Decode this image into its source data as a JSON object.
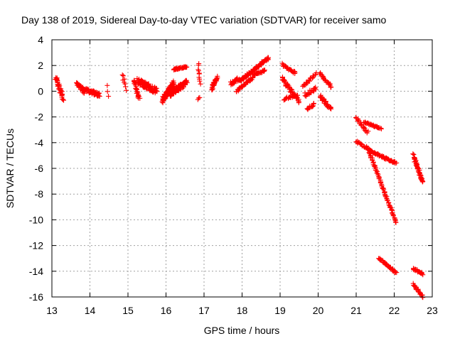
{
  "chart_data": {
    "type": "scatter",
    "title": "Day 138 of 2019, Sidereal Day-to-day VTEC variation (SDTVAR) for receiver samo",
    "xlabel": "GPS time / hours",
    "ylabel": "SDTVAR / TECUs",
    "xlim": [
      13,
      23
    ],
    "ylim": [
      -16,
      4
    ],
    "xticks": [
      13,
      14,
      15,
      16,
      17,
      18,
      19,
      20,
      21,
      22,
      23
    ],
    "yticks": [
      -16,
      -14,
      -12,
      -10,
      -8,
      -6,
      -4,
      -2,
      0,
      2,
      4
    ],
    "grid": true,
    "marker": "plus",
    "color": "#ff0000",
    "segments": [
      {
        "x0": 13.1,
        "y0": 1.0,
        "x1": 13.3,
        "y1": -0.5,
        "n": 40,
        "jitter": 0.5
      },
      {
        "x0": 13.65,
        "y0": 0.6,
        "x1": 13.85,
        "y1": 0.0,
        "n": 30,
        "jitter": 0.35
      },
      {
        "x0": 13.8,
        "y0": 0.2,
        "x1": 14.25,
        "y1": -0.3,
        "n": 60,
        "jitter": 0.3
      },
      {
        "x0": 14.45,
        "y0": 0.4,
        "x1": 14.5,
        "y1": -0.4,
        "n": 3,
        "jitter": 0.1
      },
      {
        "x0": 14.85,
        "y0": 1.3,
        "x1": 14.95,
        "y1": 0.2,
        "n": 8,
        "jitter": 0.3
      },
      {
        "x0": 15.15,
        "y0": 0.9,
        "x1": 15.3,
        "y1": -0.6,
        "n": 25,
        "jitter": 0.4
      },
      {
        "x0": 15.25,
        "y0": 0.8,
        "x1": 15.75,
        "y1": 0.0,
        "n": 90,
        "jitter": 0.45
      },
      {
        "x0": 15.9,
        "y0": -0.7,
        "x1": 16.2,
        "y1": 0.6,
        "n": 80,
        "jitter": 0.45
      },
      {
        "x0": 16.1,
        "y0": -0.2,
        "x1": 16.55,
        "y1": 0.7,
        "n": 80,
        "jitter": 0.45
      },
      {
        "x0": 16.2,
        "y0": 1.7,
        "x1": 16.55,
        "y1": 1.9,
        "n": 35,
        "jitter": 0.1
      },
      {
        "x0": 16.85,
        "y0": 2.1,
        "x1": 16.9,
        "y1": 0.6,
        "n": 10,
        "jitter": 0.2
      },
      {
        "x0": 16.85,
        "y0": -0.6,
        "x1": 16.9,
        "y1": -0.5,
        "n": 3,
        "jitter": 0.1
      },
      {
        "x0": 17.2,
        "y0": 0.2,
        "x1": 17.35,
        "y1": 1.1,
        "n": 30,
        "jitter": 0.35
      },
      {
        "x0": 17.7,
        "y0": 0.6,
        "x1": 17.95,
        "y1": 1.0,
        "n": 25,
        "jitter": 0.3
      },
      {
        "x0": 17.95,
        "y0": 0.8,
        "x1": 18.7,
        "y1": 2.6,
        "n": 80,
        "jitter": 0.2
      },
      {
        "x0": 17.85,
        "y0": 0.0,
        "x1": 18.3,
        "y1": 1.1,
        "n": 35,
        "jitter": 0.15
      },
      {
        "x0": 18.3,
        "y0": 1.3,
        "x1": 18.6,
        "y1": 1.6,
        "n": 25,
        "jitter": 0.15
      },
      {
        "x0": 19.05,
        "y0": 2.1,
        "x1": 19.4,
        "y1": 1.4,
        "n": 25,
        "jitter": 0.2
      },
      {
        "x0": 19.05,
        "y0": 1.0,
        "x1": 19.5,
        "y1": -0.8,
        "n": 45,
        "jitter": 0.3
      },
      {
        "x0": 19.1,
        "y0": -0.6,
        "x1": 19.45,
        "y1": -0.3,
        "n": 20,
        "jitter": 0.2
      },
      {
        "x0": 19.6,
        "y0": 0.3,
        "x1": 19.95,
        "y1": 1.4,
        "n": 20,
        "jitter": 0.25
      },
      {
        "x0": 19.65,
        "y0": -0.3,
        "x1": 19.95,
        "y1": 0.2,
        "n": 20,
        "jitter": 0.3
      },
      {
        "x0": 19.7,
        "y0": -1.4,
        "x1": 19.9,
        "y1": -1.0,
        "n": 12,
        "jitter": 0.15
      },
      {
        "x0": 20.05,
        "y0": 1.4,
        "x1": 20.35,
        "y1": 0.3,
        "n": 25,
        "jitter": 0.2
      },
      {
        "x0": 20.05,
        "y0": -0.4,
        "x1": 20.35,
        "y1": -1.4,
        "n": 30,
        "jitter": 0.25
      },
      {
        "x0": 21.0,
        "y0": -2.1,
        "x1": 21.3,
        "y1": -3.2,
        "n": 20,
        "jitter": 0.2
      },
      {
        "x0": 21.2,
        "y0": -2.4,
        "x1": 21.65,
        "y1": -2.9,
        "n": 35,
        "jitter": 0.1
      },
      {
        "x0": 21.0,
        "y0": -3.9,
        "x1": 21.4,
        "y1": -4.6,
        "n": 25,
        "jitter": 0.15
      },
      {
        "x0": 21.4,
        "y0": -4.7,
        "x1": 22.05,
        "y1": -5.6,
        "n": 55,
        "jitter": 0.12
      },
      {
        "x0": 21.3,
        "y0": -4.4,
        "x1": 22.05,
        "y1": -10.2,
        "n": 75,
        "jitter": 0.15
      },
      {
        "x0": 21.6,
        "y0": -13.0,
        "x1": 22.05,
        "y1": -14.1,
        "n": 45,
        "jitter": 0.12
      },
      {
        "x0": 22.5,
        "y0": -5.0,
        "x1": 22.75,
        "y1": -7.1,
        "n": 45,
        "jitter": 0.3
      },
      {
        "x0": 22.5,
        "y0": -13.8,
        "x1": 22.75,
        "y1": -14.2,
        "n": 25,
        "jitter": 0.15
      },
      {
        "x0": 22.5,
        "y0": -15.0,
        "x1": 22.75,
        "y1": -16.0,
        "n": 25,
        "jitter": 0.12
      }
    ]
  }
}
